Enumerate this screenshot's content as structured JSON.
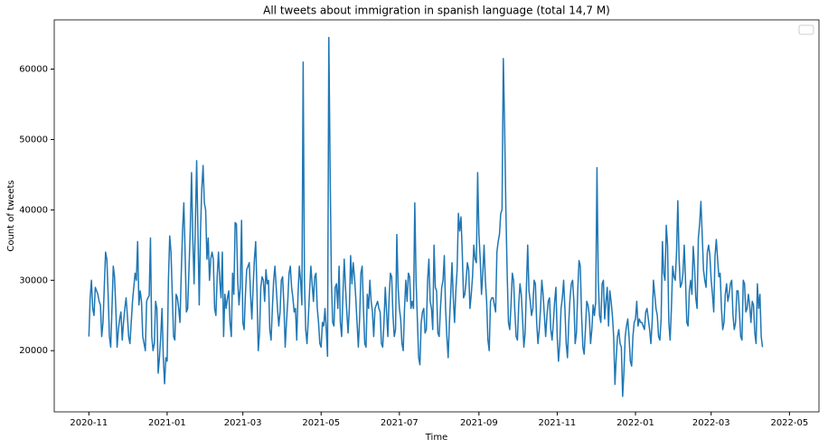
{
  "chart_data": {
    "type": "line",
    "title": "All tweets about immigration in spanish language (total 14,7 M)",
    "x_label": "Time",
    "y_label": "Count of tweets",
    "color": "#1f77b4",
    "grid": false,
    "xlim": [
      -27,
      569
    ],
    "ylim": [
      11300,
      67000
    ],
    "xticks": [
      {
        "value": 0,
        "label": "2020-11"
      },
      {
        "value": 61,
        "label": "2021-01"
      },
      {
        "value": 120,
        "label": "2021-03"
      },
      {
        "value": 181,
        "label": "2021-05"
      },
      {
        "value": 242,
        "label": "2021-07"
      },
      {
        "value": 304,
        "label": "2021-09"
      },
      {
        "value": 365,
        "label": "2021-11"
      },
      {
        "value": 426,
        "label": "2022-01"
      },
      {
        "value": 485,
        "label": "2022-03"
      },
      {
        "value": 546,
        "label": "2022-05"
      }
    ],
    "yticks": [
      20000,
      30000,
      40000,
      50000,
      60000
    ],
    "values": [
      22000,
      27500,
      30000,
      26000,
      25000,
      29000,
      28500,
      28000,
      27000,
      26500,
      22000,
      24000,
      29000,
      34000,
      33000,
      28000,
      22000,
      20500,
      26000,
      32000,
      30500,
      26000,
      20500,
      23000,
      24500,
      25500,
      21500,
      24000,
      26000,
      27500,
      25000,
      22000,
      21000,
      24000,
      27000,
      29000,
      31000,
      30000,
      35500,
      26500,
      28500,
      27000,
      22000,
      21000,
      20000,
      27000,
      27500,
      27800,
      36000,
      22000,
      20000,
      21000,
      27000,
      26000,
      16800,
      19000,
      22000,
      26000,
      19000,
      15300,
      19000,
      18500,
      30000,
      36300,
      34000,
      28000,
      22000,
      21500,
      28000,
      27500,
      26000,
      24000,
      31000,
      37000,
      41000,
      34000,
      25500,
      26000,
      31500,
      37000,
      45300,
      36000,
      29500,
      38000,
      47000,
      37000,
      26500,
      37000,
      43000,
      46300,
      41000,
      40000,
      33000,
      36000,
      30000,
      33000,
      34000,
      33000,
      26000,
      25000,
      30500,
      34000,
      30000,
      27500,
      34000,
      22000,
      28000,
      26000,
      27500,
      28500,
      24000,
      22000,
      31000,
      28000,
      38200,
      38000,
      30000,
      26500,
      29000,
      38500,
      24000,
      23000,
      28000,
      31500,
      32000,
      32500,
      28000,
      24500,
      29000,
      33000,
      35500,
      28500,
      20000,
      22500,
      29000,
      30500,
      30000,
      27000,
      31500,
      29500,
      30000,
      23000,
      21500,
      26000,
      30000,
      32000,
      29000,
      26000,
      23500,
      25500,
      30000,
      30500,
      26500,
      20500,
      24000,
      27000,
      31000,
      32000,
      29000,
      27500,
      25500,
      26000,
      21500,
      28000,
      32000,
      30000,
      26500,
      61000,
      30000,
      23000,
      21000,
      24500,
      28500,
      32000,
      29500,
      27000,
      30500,
      31000,
      26000,
      24000,
      21000,
      20500,
      24000,
      23500,
      26000,
      23000,
      19200,
      64500,
      46000,
      30000,
      24000,
      23500,
      29000,
      29500,
      26000,
      32000,
      24000,
      22000,
      28000,
      33000,
      29000,
      25500,
      22500,
      26000,
      33500,
      29500,
      32500,
      30500,
      27500,
      24000,
      20500,
      24500,
      31000,
      32000,
      26000,
      21000,
      20500,
      28000,
      26000,
      30000,
      27000,
      25500,
      22000,
      26000,
      26500,
      27000,
      26000,
      25500,
      21000,
      20500,
      24000,
      29000,
      25500,
      22000,
      27500,
      31000,
      30500,
      25000,
      22000,
      23000,
      36500,
      29000,
      26000,
      24500,
      21000,
      20000,
      26000,
      30000,
      27000,
      31000,
      30500,
      26000,
      27000,
      26000,
      41000,
      30000,
      24500,
      19000,
      18000,
      24000,
      25500,
      26000,
      22500,
      23000,
      30000,
      33000,
      27000,
      26000,
      23000,
      35000,
      29000,
      28500,
      22500,
      22000,
      26000,
      29000,
      30000,
      33500,
      26000,
      22000,
      19000,
      24000,
      28000,
      32500,
      27500,
      24000,
      28500,
      31500,
      39500,
      37000,
      39000,
      34000,
      27500,
      28000,
      30000,
      32500,
      31500,
      26000,
      28000,
      30500,
      35000,
      33000,
      32500,
      45300,
      36500,
      33000,
      28000,
      31000,
      35000,
      30000,
      27000,
      21500,
      20000,
      27000,
      27500,
      27500,
      26500,
      25500,
      34000,
      35500,
      36500,
      39500,
      40000,
      61500,
      52000,
      40000,
      31000,
      24000,
      23000,
      26500,
      31000,
      30000,
      25500,
      22000,
      21500,
      26500,
      29500,
      28000,
      24500,
      20500,
      22500,
      29000,
      35000,
      28500,
      27000,
      25000,
      26000,
      30000,
      29500,
      24000,
      21000,
      23000,
      26000,
      30000,
      28000,
      25000,
      22000,
      25000,
      27000,
      27500,
      23000,
      21500,
      24000,
      27000,
      29000,
      22000,
      18500,
      21000,
      26000,
      27500,
      30000,
      26000,
      21000,
      19000,
      24000,
      27500,
      29500,
      30000,
      27000,
      21000,
      22500,
      28500,
      32800,
      32000,
      25000,
      20500,
      19500,
      23000,
      27000,
      26500,
      25000,
      21000,
      23000,
      26500,
      25000,
      27000,
      46000,
      30000,
      25000,
      24000,
      29500,
      30000,
      24500,
      27000,
      29000,
      23500,
      28500,
      27000,
      25000,
      22000,
      15200,
      19000,
      22000,
      23000,
      21000,
      20500,
      13500,
      17000,
      22000,
      23500,
      24500,
      22000,
      18500,
      17800,
      22000,
      24000,
      24500,
      27000,
      23500,
      24500,
      24000,
      24000,
      23500,
      23000,
      25500,
      26000,
      24500,
      23000,
      21000,
      24000,
      30000,
      28000,
      26000,
      25000,
      22000,
      21500,
      24500,
      35500,
      31000,
      30000,
      37800,
      35000,
      24000,
      21500,
      26000,
      32000,
      30500,
      30000,
      34000,
      41300,
      33000,
      29000,
      29500,
      31000,
      35000,
      30000,
      24000,
      23500,
      28500,
      30000,
      28000,
      34800,
      32000,
      27500,
      26000,
      36000,
      38000,
      41200,
      36500,
      31500,
      30000,
      29000,
      34000,
      35000,
      33500,
      30000,
      28000,
      25500,
      33500,
      35800,
      33000,
      30500,
      31000,
      26000,
      23000,
      24000,
      28000,
      29500,
      27000,
      28000,
      29500,
      30000,
      25000,
      23000,
      24000,
      28500,
      28500,
      25500,
      22000,
      21500,
      30000,
      29500,
      25500,
      26000,
      28000,
      26500,
      24000,
      27000,
      26500,
      22500,
      21000,
      29500,
      26000,
      28000,
      22000,
      20500
    ]
  }
}
